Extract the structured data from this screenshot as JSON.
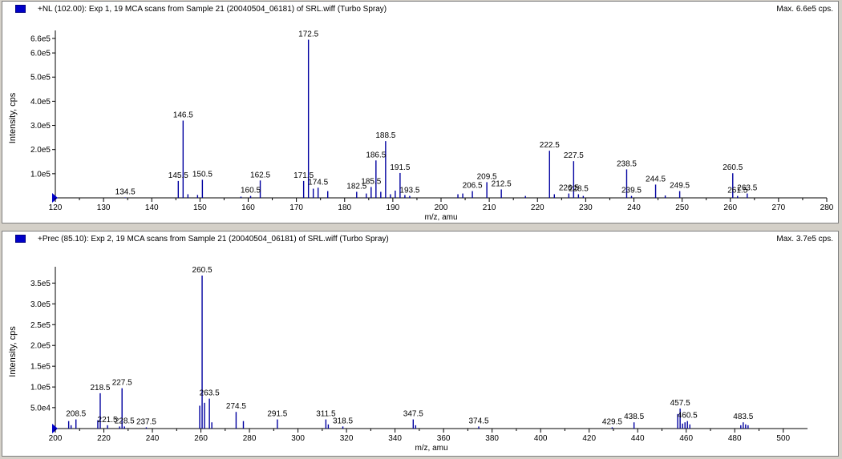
{
  "chart_data": [
    {
      "type": "bar",
      "title": "+NL (102.00): Exp 1, 19 MCA scans from Sample 21 (20040504_06181) of SRL.wiff (Turbo Spray)",
      "max_label": "Max. 6.6e5 cps.",
      "xlabel": "m/z, amu",
      "ylabel": "Intensity, cps",
      "xlim": [
        120,
        280
      ],
      "ylim": [
        0,
        660000
      ],
      "x_ticks": [
        120,
        130,
        140,
        150,
        160,
        170,
        180,
        190,
        200,
        210,
        220,
        230,
        240,
        250,
        260,
        270,
        280
      ],
      "y_ticks": [
        100000,
        200000,
        300000,
        400000,
        500000,
        600000,
        660000
      ],
      "y_tick_labels": [
        "1.0e5",
        "2.0e5",
        "3.0e5",
        "4.0e5",
        "5.0e5",
        "6.0e5",
        "6.6e5"
      ],
      "color": "#0000a0",
      "x": [
        134.5,
        145.5,
        146.5,
        147.5,
        149.5,
        150.5,
        158.5,
        160.5,
        162.5,
        171.5,
        172.5,
        173.5,
        174.5,
        176.5,
        182.5,
        184.5,
        185.5,
        186.5,
        187.5,
        188.5,
        189.5,
        190.5,
        191.5,
        192.5,
        193.5,
        203.5,
        204.5,
        206.5,
        209.5,
        212.5,
        217.5,
        222.5,
        223.5,
        226.5,
        227.5,
        228.5,
        229.5,
        238.5,
        239.5,
        244.5,
        246.5,
        249.5,
        260.5,
        261.5,
        263.5
      ],
      "values": [
        2000,
        70000,
        320000,
        15000,
        12000,
        75000,
        5000,
        8000,
        72000,
        70000,
        655000,
        38000,
        42000,
        28000,
        25000,
        18000,
        45000,
        155000,
        25000,
        235000,
        15000,
        30000,
        103000,
        12000,
        8000,
        15000,
        18000,
        28000,
        65000,
        35000,
        8000,
        195000,
        15000,
        18000,
        152000,
        15000,
        8000,
        118000,
        8000,
        55000,
        10000,
        28000,
        102000,
        8000,
        18000
      ],
      "annotations": [
        {
          "x": 134.5,
          "label": "134.5"
        },
        {
          "x": 145.5,
          "label": "145.5"
        },
        {
          "x": 146.5,
          "label": "146.5"
        },
        {
          "x": 150.5,
          "label": "150.5"
        },
        {
          "x": 160.5,
          "label": "160.5"
        },
        {
          "x": 162.5,
          "label": "162.5"
        },
        {
          "x": 171.5,
          "label": "171.5"
        },
        {
          "x": 172.5,
          "label": "172.5"
        },
        {
          "x": 174.5,
          "label": "174.5"
        },
        {
          "x": 182.5,
          "label": "182.5"
        },
        {
          "x": 185.5,
          "label": "185.5"
        },
        {
          "x": 186.5,
          "label": "186.5"
        },
        {
          "x": 188.5,
          "label": "188.5"
        },
        {
          "x": 191.5,
          "label": "191.5"
        },
        {
          "x": 193.5,
          "label": "193.5"
        },
        {
          "x": 206.5,
          "label": "206.5"
        },
        {
          "x": 209.5,
          "label": "209.5"
        },
        {
          "x": 212.5,
          "label": "212.5"
        },
        {
          "x": 222.5,
          "label": "222.5"
        },
        {
          "x": 226.5,
          "label": "226.5"
        },
        {
          "x": 227.5,
          "label": "227.5"
        },
        {
          "x": 228.5,
          "label": "228.5"
        },
        {
          "x": 238.5,
          "label": "238.5"
        },
        {
          "x": 239.5,
          "label": "239.5"
        },
        {
          "x": 244.5,
          "label": "244.5"
        },
        {
          "x": 249.5,
          "label": "249.5"
        },
        {
          "x": 260.5,
          "label": "260.5"
        },
        {
          "x": 261.5,
          "label": "261.5"
        },
        {
          "x": 263.5,
          "label": "263.5"
        }
      ]
    },
    {
      "type": "bar",
      "title": "+Prec (85.10): Exp 2, 19 MCA scans from Sample 21 (20040504_06181) of SRL.wiff (Turbo Spray)",
      "max_label": "Max. 3.7e5 cps.",
      "xlabel": "m/z, amu",
      "ylabel": "Intensity, cps",
      "xlim": [
        200,
        510
      ],
      "ylim": [
        0,
        370000
      ],
      "x_ticks": [
        200,
        220,
        240,
        260,
        280,
        300,
        320,
        340,
        360,
        380,
        400,
        420,
        440,
        460,
        480,
        500
      ],
      "y_ticks": [
        50400,
        100000,
        150000,
        200000,
        250000,
        300000,
        350000
      ],
      "y_tick_labels": [
        "5.0e4",
        "1.0e5",
        "1.5e5",
        "2.0e5",
        "2.5e5",
        "3.0e5",
        "3.5e5"
      ],
      "color": "#0000a0",
      "x": [
        205.5,
        206.5,
        208.5,
        217.5,
        218.5,
        221.5,
        226.5,
        227.5,
        228.5,
        237.5,
        259.5,
        260.5,
        261.5,
        263.5,
        264.5,
        274.5,
        277.5,
        291.5,
        311.5,
        312.5,
        318.5,
        347.5,
        348.5,
        374.5,
        429.5,
        438.5,
        456.5,
        457.5,
        458.5,
        459.5,
        460.5,
        461.5,
        482.5,
        483.5,
        484.5,
        485.5
      ],
      "values": [
        18000,
        8000,
        22000,
        20000,
        85000,
        8000,
        5000,
        97000,
        5000,
        3000,
        55000,
        368000,
        62000,
        72000,
        15000,
        40000,
        18000,
        22000,
        22000,
        10000,
        5000,
        22000,
        8000,
        5000,
        3000,
        15000,
        35000,
        48000,
        12000,
        15000,
        18000,
        10000,
        8000,
        15000,
        10000,
        8000
      ],
      "annotations": [
        {
          "x": 208.5,
          "label": "208.5"
        },
        {
          "x": 218.5,
          "label": "218.5"
        },
        {
          "x": 221.5,
          "label": "221.5"
        },
        {
          "x": 227.5,
          "label": "227.5"
        },
        {
          "x": 228.5,
          "label": "228.5"
        },
        {
          "x": 237.5,
          "label": "237.5"
        },
        {
          "x": 260.5,
          "label": "260.5"
        },
        {
          "x": 263.5,
          "label": "263.5"
        },
        {
          "x": 274.5,
          "label": "274.5"
        },
        {
          "x": 291.5,
          "label": "291.5"
        },
        {
          "x": 311.5,
          "label": "311.5"
        },
        {
          "x": 318.5,
          "label": "318.5"
        },
        {
          "x": 347.5,
          "label": "347.5"
        },
        {
          "x": 374.5,
          "label": "374.5"
        },
        {
          "x": 429.5,
          "label": "429.5"
        },
        {
          "x": 438.5,
          "label": "438.5"
        },
        {
          "x": 457.5,
          "label": "457.5"
        },
        {
          "x": 460.5,
          "label": "460.5"
        },
        {
          "x": 483.5,
          "label": "483.5"
        }
      ]
    }
  ]
}
